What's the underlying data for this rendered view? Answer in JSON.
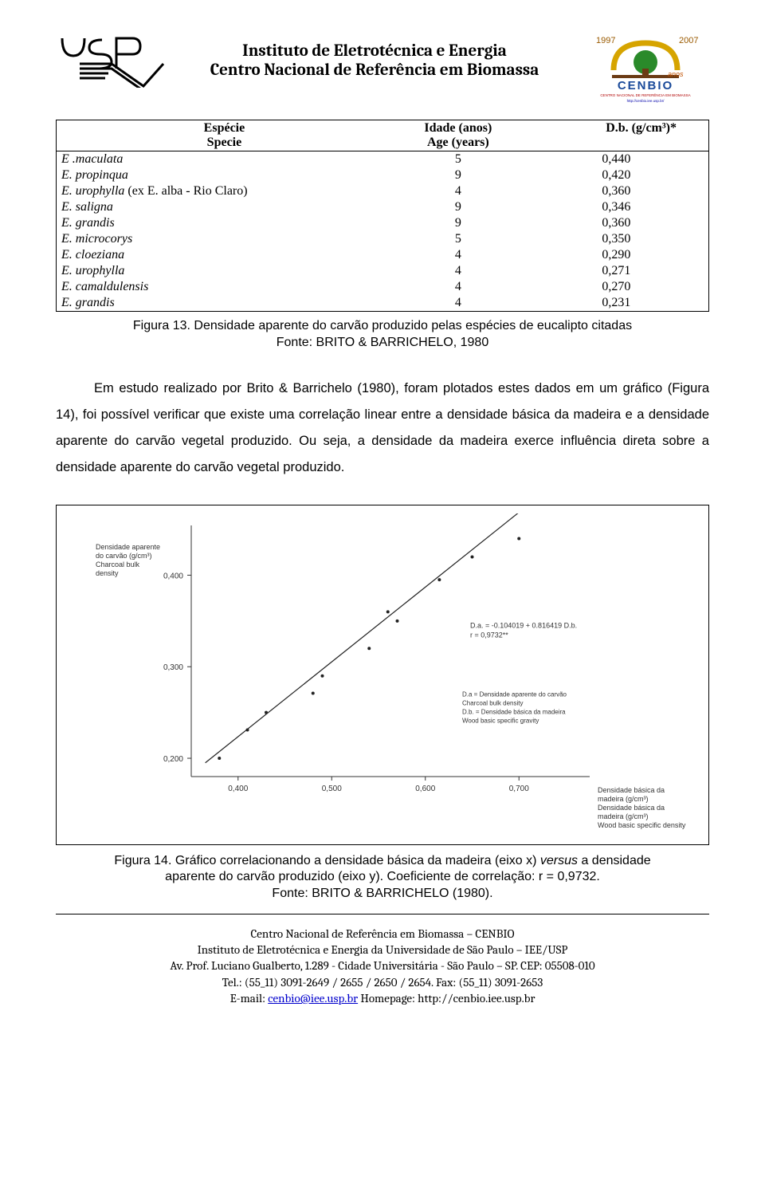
{
  "header": {
    "line1": "Instituto de Eletrotécnica e Energia",
    "line2": "Centro Nacional de Referência em Biomassa",
    "left_logo_text": "USP",
    "right_logo_year1": "1997",
    "right_logo_year2": "2007",
    "right_logo_name": "CENBIO",
    "right_logo_sub": "CENTRO NACIONAL DE REFERÊNCIA EM BIOMASSA",
    "right_logo_url": "http://cenbio.iee.usp.br/"
  },
  "table": {
    "columns": [
      {
        "pt": "Espécie",
        "en": "Specie",
        "align": "left",
        "width": "45%"
      },
      {
        "pt": "Idade (anos)",
        "en": "Age (years)",
        "align": "center",
        "width": "25%"
      },
      {
        "pt": "D.b. (g/cm³)*",
        "en": "",
        "align": "center",
        "width": "30%"
      }
    ],
    "rows": [
      {
        "especie": "E .maculata",
        "idade": "5",
        "db": "0,440"
      },
      {
        "especie": "E. propinqua",
        "idade": "9",
        "db": "0,420"
      },
      {
        "especie": "E. urophylla (ex E. alba - Rio Claro)",
        "idade": "4",
        "db": "0,360",
        "suffix_noitalic": "(ex E. alba - Rio Claro)"
      },
      {
        "especie": "E. saligna",
        "idade": "9",
        "db": "0,346"
      },
      {
        "especie": "E. grandis",
        "idade": "9",
        "db": "0,360"
      },
      {
        "especie": "E. microcorys",
        "idade": "5",
        "db": "0,350"
      },
      {
        "especie": "E. cloeziana",
        "idade": "4",
        "db": "0,290"
      },
      {
        "especie": "E. urophylla",
        "idade": "4",
        "db": "0,271"
      },
      {
        "especie": "E. camaldulensis",
        "idade": "4",
        "db": "0,270"
      },
      {
        "especie": "E. grandis",
        "idade": "4",
        "db": "0,231"
      }
    ]
  },
  "fig13_caption_line1": "Figura 13. Densidade aparente do carvão produzido pelas espécies de eucalipto citadas",
  "fig13_caption_line2": "Fonte: BRITO & BARRICHELO, 1980",
  "paragraph": "Em estudo realizado por Brito & Barrichelo (1980), foram plotados estes dados em um gráfico (Figura 14), foi possível verificar que existe uma correlação linear entre a densidade básica da madeira e a densidade aparente do carvão vegetal produzido. Ou seja, a densidade da madeira exerce influência direta sobre a densidade aparente do carvão vegetal produzido.",
  "chart": {
    "type": "scatter-with-regression",
    "xlabel_lines": [
      "Densidade básica da",
      "madeira (g/cm³)",
      "Densidade básica da",
      "madeira (g/cm³)",
      "Wood basic specific density"
    ],
    "ylabel_lines": [
      "Densidade aparente",
      "do carvão (g/cm³)",
      "Charcoal bulk",
      "density"
    ],
    "equation": "D.a. = -0.104019 + 0.816419 D.b.",
    "correlation": "r = 0,9732**",
    "legend_lines": [
      "D.a = Densidade aparente do carvão",
      "Charcoal bulk density",
      "D.b. = Densidade básica da madeira",
      "Wood basic specific gravity"
    ],
    "xlim": [
      0.35,
      0.75
    ],
    "ylim": [
      0.18,
      0.45
    ],
    "xticks": [
      0.4,
      0.5,
      0.6,
      0.7
    ],
    "xtick_labels": [
      "0,400",
      "0,500",
      "0,600",
      "0,700"
    ],
    "yticks": [
      0.2,
      0.3,
      0.4
    ],
    "ytick_labels": [
      "0,200",
      "0,300",
      "0,400"
    ],
    "points": [
      {
        "x": 0.38,
        "y": 0.2
      },
      {
        "x": 0.41,
        "y": 0.231
      },
      {
        "x": 0.43,
        "y": 0.25
      },
      {
        "x": 0.48,
        "y": 0.271
      },
      {
        "x": 0.49,
        "y": 0.29
      },
      {
        "x": 0.54,
        "y": 0.32
      },
      {
        "x": 0.56,
        "y": 0.36
      },
      {
        "x": 0.57,
        "y": 0.35
      },
      {
        "x": 0.615,
        "y": 0.395
      },
      {
        "x": 0.65,
        "y": 0.42
      },
      {
        "x": 0.7,
        "y": 0.44
      }
    ],
    "line": {
      "x1": 0.365,
      "y1": 0.195,
      "x2": 0.72,
      "y2": 0.485
    },
    "colors": {
      "background": "#ffffff",
      "axis": "#333333",
      "points": "#222222",
      "line": "#222222",
      "text": "#333333"
    },
    "font_size_axis": 10,
    "font_size_labels": 9,
    "line_width": 1.2,
    "point_radius": 2
  },
  "fig14_caption_line1": "Figura 14. Gráfico correlacionando a densidade básica da madeira (eixo x) versus a densidade",
  "fig14_caption_line1_it": "versus",
  "fig14_caption_line2": "aparente do carvão produzido (eixo y). Coeficiente de correlação: r = 0,9732.",
  "fig14_caption_line3": "Fonte: BRITO & BARRICHELO (1980).",
  "footer": {
    "l1": "Centro Nacional de Referência em Biomassa – CENBIO",
    "l2": "Instituto de Eletrotécnica e Energia da Universidade de São Paulo – IEE/USP",
    "l3": "Av. Prof. Luciano Gualberto, 1.289 - Cidade Universitária - São Paulo – SP. CEP: 05508-010",
    "l4": "Tel.: (55_11) 3091-2649 / 2655 / 2650 / 2654. Fax: (55_11) 3091-2653",
    "l5_prefix": "E-mail: ",
    "l5_email": "cenbio@iee.usp.br",
    "l5_mid": " Homepage: http://cenbio.iee.usp.br"
  }
}
